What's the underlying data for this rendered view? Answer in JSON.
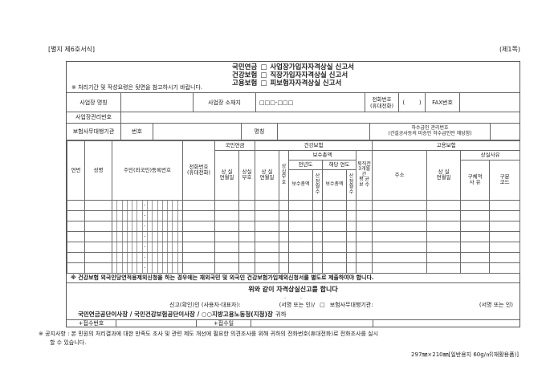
{
  "colors": {
    "paper": "#ffffff",
    "ink": "#1c1c1c",
    "line": "#6b6b6b"
  },
  "page": {
    "form_ref": "[별지 제6호서식]",
    "sheet_no": "(제1쪽)",
    "notice_line1": "※ 공지사항 : 본 민원의 처리결과에 대한 만족도 조사 및 관련 제도 개선에 필요한 의견조사를 위해 귀하의 전화번호(휴대전화)로 전화조사를 실시",
    "notice_line2": "할 수 있습니다.",
    "paper_spec": "297㎜×210㎜[일반용지 60g/㎡(재활용품)]"
  },
  "title": {
    "line1": {
      "scheme": "국민연금",
      "checkbox": "□",
      "name": "사업장가입자자격상실 신고서"
    },
    "line2": {
      "scheme": "건강보험",
      "checkbox": "□",
      "name": "직장가입자자격상실 신고서"
    },
    "line3": {
      "scheme": "고용보험",
      "checkbox": "□",
      "name": "피보험자자격상실 신고서"
    },
    "note": "※ 처리기간 및 작성요령은 뒷면을 참고하시기 바랍니다."
  },
  "workplace": {
    "name_label": "사업장 명칭",
    "name_value": "",
    "address_label": "사업장 소재지",
    "postal_placeholder": "□□□-□□□",
    "phone_label": "전화번호\n(휴대전화)",
    "phone_value": "(        )",
    "fax_label": "FAX번호",
    "fax_value": "",
    "mgmt_label": "사업장관리번호",
    "mgmt_value": ""
  },
  "agency": {
    "label": "보험사무대행기관",
    "no_label": "번호",
    "no_value": "",
    "name_label": "명칭",
    "name_value": "",
    "sub_label": "하수급인 관리번호\n(건설공사등의 미승인 하수급인만 해당함)",
    "sub_value": ""
  },
  "table": {
    "col_no": "연번",
    "col_name": "성명",
    "col_rrn": "주민(외국인)등록번호",
    "col_phone": "전화번호\n(휴대전화)",
    "group_np": "국민연금",
    "group_hi": "건강보험",
    "group_ei": "고용보험",
    "np_loss_date": "상 실\n연월일",
    "np_loss_code": "상실\n부호",
    "hi_loss_date": "상 실\n연월일",
    "hi_loss_code": "상\n실\n부\n호",
    "hi_pay_group": "보수총액",
    "hi_prev_year": "전년도",
    "hi_this_year": "해당 연도",
    "pay_total": "보수총액",
    "calc_months": "산\n정\n월\n수",
    "hi_avg_pay": "퇴직전\n3개월간\n평 균\n보 수",
    "ei_address": "주소",
    "ei_loss_date": "상 실\n연월일",
    "ei_loss_reason": "상실사유",
    "ei_reason_detail": "구체적\n사 유",
    "ei_reason_code": "구분\n코드",
    "rrn_separator": "-",
    "row_count": 7,
    "col_count": 17,
    "rrn_col_index": 2,
    "rrn_box_count": 14,
    "rrn_sep_index": 6
  },
  "notes": {
    "health_note": "※ 건강보험 외국인당연적용제외신청을 하는 경우에는 재외국민 및 외국인 건강보험가입제외신청서를 별도로 제출하여야 합니다."
  },
  "declaration": {
    "statement": "위와 같이 자격상실신고를 합니다",
    "date_placeholder": ".        .",
    "reporter_label": "신고(확인)인 (사용자·대표자):",
    "sign_label1": "(서명 또는 인)/",
    "agency_checkbox": "□",
    "agency_label": "보험사무대행기관:",
    "sign_label2": "(서명 또는 인)",
    "addressee": "국민연금공단이사장 / 국민건강보험공단이사장 / ○○지방고용노동청(지청)장",
    "addressee_suffix": "귀하"
  },
  "receipt": {
    "no_label": "+접수번호",
    "no_value": "",
    "date_label": "+접수일",
    "date_value": "",
    "extra_value": ""
  }
}
